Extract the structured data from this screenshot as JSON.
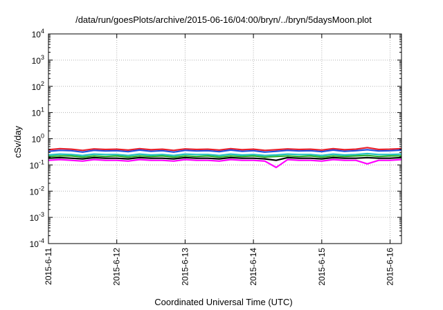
{
  "chart_data": {
    "type": "line",
    "title": "/data/run/goesPlots/archive/2015-06-16/04:00/bryn/../bryn/5daysMoon.plot",
    "xlabel": "Coordinated Universal Time (UTC)",
    "ylabel": "cSv/day",
    "yscale": "log",
    "ylim": [
      0.0001,
      10000
    ],
    "xlim": [
      "2015-06-11T00:00",
      "2015-06-16T04:00"
    ],
    "grid": true,
    "legend": "none",
    "x_ticks": [
      "2015-6-11",
      "2015-6-12",
      "2015-6-13",
      "2015-6-14",
      "2015-6-15",
      "2015-6-16"
    ],
    "y_ticks": [
      {
        "base": "10",
        "exp": "4",
        "value": 10000
      },
      {
        "base": "10",
        "exp": "3",
        "value": 1000
      },
      {
        "base": "10",
        "exp": "2",
        "value": 100
      },
      {
        "base": "10",
        "exp": "1",
        "value": 10
      },
      {
        "base": "10",
        "exp": "0",
        "value": 1
      },
      {
        "base": "10",
        "exp": "-1",
        "value": 0.1
      },
      {
        "base": "10",
        "exp": "-2",
        "value": 0.01
      },
      {
        "base": "10",
        "exp": "-3",
        "value": 0.001
      },
      {
        "base": "10",
        "exp": "-4",
        "value": 0.0001
      }
    ],
    "x": [
      "2015-06-11T00:00",
      "2015-06-11T04:00",
      "2015-06-11T08:00",
      "2015-06-11T12:00",
      "2015-06-11T16:00",
      "2015-06-11T20:00",
      "2015-06-12T00:00",
      "2015-06-12T04:00",
      "2015-06-12T08:00",
      "2015-06-12T12:00",
      "2015-06-12T16:00",
      "2015-06-12T20:00",
      "2015-06-13T00:00",
      "2015-06-13T04:00",
      "2015-06-13T08:00",
      "2015-06-13T12:00",
      "2015-06-13T16:00",
      "2015-06-13T20:00",
      "2015-06-14T00:00",
      "2015-06-14T04:00",
      "2015-06-14T08:00",
      "2015-06-14T12:00",
      "2015-06-14T16:00",
      "2015-06-14T20:00",
      "2015-06-15T00:00",
      "2015-06-15T04:00",
      "2015-06-15T08:00",
      "2015-06-15T12:00",
      "2015-06-15T16:00",
      "2015-06-15T20:00",
      "2015-06-16T00:00",
      "2015-06-16T04:00"
    ],
    "series": [
      {
        "color": "#e8202a",
        "values": [
          0.38,
          0.42,
          0.4,
          0.36,
          0.41,
          0.39,
          0.4,
          0.37,
          0.42,
          0.38,
          0.4,
          0.36,
          0.41,
          0.39,
          0.4,
          0.37,
          0.42,
          0.38,
          0.4,
          0.36,
          0.38,
          0.41,
          0.39,
          0.4,
          0.37,
          0.42,
          0.38,
          0.4,
          0.46,
          0.39,
          0.4,
          0.42
        ]
      },
      {
        "color": "#2050e0",
        "values": [
          0.33,
          0.36,
          0.35,
          0.31,
          0.36,
          0.34,
          0.35,
          0.32,
          0.37,
          0.33,
          0.35,
          0.31,
          0.36,
          0.34,
          0.35,
          0.32,
          0.37,
          0.33,
          0.35,
          0.31,
          0.33,
          0.36,
          0.34,
          0.35,
          0.32,
          0.37,
          0.33,
          0.35,
          0.38,
          0.34,
          0.35,
          0.37
        ]
      },
      {
        "color": "#20c0c0",
        "values": [
          0.24,
          0.26,
          0.25,
          0.23,
          0.26,
          0.25,
          0.25,
          0.23,
          0.26,
          0.24,
          0.25,
          0.23,
          0.26,
          0.25,
          0.25,
          0.23,
          0.26,
          0.24,
          0.25,
          0.23,
          0.24,
          0.26,
          0.25,
          0.25,
          0.23,
          0.26,
          0.24,
          0.25,
          0.27,
          0.25,
          0.25,
          0.26
        ]
      },
      {
        "color": "#30b030",
        "values": [
          0.21,
          0.22,
          0.22,
          0.2,
          0.22,
          0.21,
          0.22,
          0.2,
          0.22,
          0.21,
          0.22,
          0.2,
          0.22,
          0.21,
          0.22,
          0.2,
          0.22,
          0.21,
          0.22,
          0.2,
          0.21,
          0.22,
          0.21,
          0.22,
          0.2,
          0.22,
          0.21,
          0.22,
          0.23,
          0.21,
          0.22,
          0.22
        ]
      },
      {
        "color": "#000000",
        "values": [
          0.18,
          0.19,
          0.18,
          0.17,
          0.19,
          0.18,
          0.18,
          0.17,
          0.19,
          0.18,
          0.18,
          0.17,
          0.19,
          0.18,
          0.18,
          0.17,
          0.19,
          0.18,
          0.18,
          0.17,
          0.15,
          0.19,
          0.18,
          0.18,
          0.17,
          0.19,
          0.18,
          0.18,
          0.19,
          0.18,
          0.18,
          0.19
        ]
      },
      {
        "color": "#ff00ff",
        "values": [
          0.15,
          0.16,
          0.15,
          0.14,
          0.16,
          0.15,
          0.15,
          0.14,
          0.16,
          0.15,
          0.15,
          0.14,
          0.16,
          0.15,
          0.15,
          0.14,
          0.16,
          0.15,
          0.15,
          0.14,
          0.08,
          0.16,
          0.15,
          0.15,
          0.14,
          0.16,
          0.15,
          0.15,
          0.11,
          0.15,
          0.15,
          0.16
        ]
      }
    ]
  }
}
